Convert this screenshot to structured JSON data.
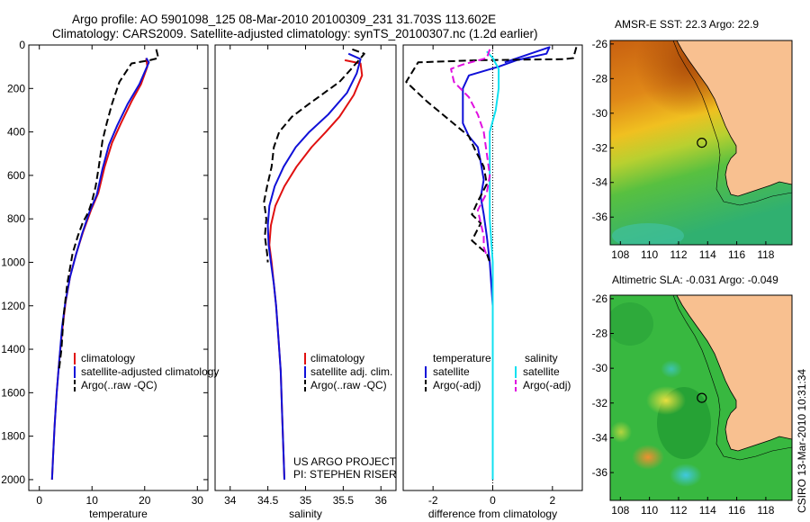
{
  "header": {
    "line1": "Argo profile: AO 5901098_125 08-Mar-2010 20100309_231 31.703S 113.602E",
    "line2": "Climatology: CARS2009. Satellite-adjusted climatology: synTS_20100307.nc (1.2d earlier)"
  },
  "side_label": "CSIRO 13-Mar-2010 10:31:34",
  "credit": {
    "line1": "US ARGO PROJECT",
    "line2": "PI: STEPHEN RISER"
  },
  "colors": {
    "climatology": "#e01010",
    "satellite": "#1010d8",
    "argo": "#000000",
    "sal_satellite": "#10e0f0",
    "sal_argo": "#e010e0",
    "land": "#f8c090",
    "marker": "#000000"
  },
  "chart_data": [
    {
      "id": "temperature",
      "type": "line",
      "xlabel": "temperature",
      "ylabel": "",
      "xlim": [
        -2,
        32
      ],
      "ylim": [
        0,
        2050
      ],
      "y_inverted": true,
      "xticks": [
        0,
        10,
        20,
        30
      ],
      "yticks": [
        0,
        200,
        400,
        600,
        800,
        1000,
        1200,
        1400,
        1600,
        1800,
        2000
      ],
      "legend": [
        "climatology",
        "satellite-adjusted climatology",
        "Argo(..raw -QC)"
      ],
      "series": [
        {
          "name": "climatology",
          "color": "climatology",
          "dash": "",
          "points": [
            [
              20.3,
              60
            ],
            [
              20.5,
              100
            ],
            [
              19.3,
              180
            ],
            [
              17.5,
              260
            ],
            [
              15.5,
              360
            ],
            [
              13.8,
              450
            ],
            [
              12.4,
              560
            ],
            [
              11.2,
              680
            ],
            [
              9.8,
              760
            ],
            [
              8.3,
              860
            ],
            [
              7.0,
              960
            ],
            [
              5.9,
              1060
            ],
            [
              5.0,
              1180
            ],
            [
              4.4,
              1300
            ],
            [
              3.8,
              1450
            ],
            [
              3.3,
              1600
            ],
            [
              2.9,
              1750
            ],
            [
              2.6,
              1900
            ],
            [
              2.4,
              2000
            ]
          ]
        },
        {
          "name": "satellite-adjusted climatology",
          "color": "satellite",
          "dash": "",
          "points": [
            [
              20.3,
              60
            ],
            [
              20.8,
              80
            ],
            [
              19.0,
              180
            ],
            [
              16.8,
              270
            ],
            [
              14.8,
              370
            ],
            [
              13.2,
              460
            ],
            [
              12.0,
              570
            ],
            [
              10.9,
              690
            ],
            [
              9.5,
              770
            ],
            [
              8.1,
              870
            ],
            [
              6.9,
              970
            ],
            [
              5.8,
              1070
            ],
            [
              4.9,
              1190
            ],
            [
              4.3,
              1300
            ],
            [
              3.8,
              1450
            ],
            [
              3.3,
              1600
            ],
            [
              2.9,
              1750
            ],
            [
              2.6,
              1900
            ],
            [
              2.4,
              2000
            ]
          ]
        },
        {
          "name": "Argo(..raw -QC)",
          "color": "argo",
          "dash": "8,4",
          "points": [
            [
              22.2,
              20
            ],
            [
              22.6,
              60
            ],
            [
              21.0,
              70
            ],
            [
              17.5,
              85
            ],
            [
              15.2,
              170
            ],
            [
              13.8,
              270
            ],
            [
              12.8,
              360
            ],
            [
              12.0,
              440
            ],
            [
              11.3,
              560
            ],
            [
              10.7,
              650
            ],
            [
              10.0,
              720
            ],
            [
              9.3,
              770
            ],
            [
              8.2,
              820
            ],
            [
              7.3,
              880
            ],
            [
              6.3,
              960
            ],
            [
              5.3,
              1100
            ],
            [
              4.6,
              1250
            ],
            [
              4.2,
              1400
            ],
            [
              3.7,
              1500
            ]
          ]
        }
      ]
    },
    {
      "id": "salinity",
      "type": "line",
      "xlabel": "salinity",
      "ylabel": "",
      "xlim": [
        33.8,
        36.2
      ],
      "ylim": [
        0,
        2050
      ],
      "y_inverted": true,
      "xticks": [
        34,
        34.5,
        35,
        35.5,
        36
      ],
      "yticks": [],
      "legend": [
        "climatology",
        "satellite adj. clim.",
        "Argo(..raw -QC)"
      ],
      "series": [
        {
          "name": "climatology",
          "color": "climatology",
          "dash": "",
          "points": [
            [
              35.52,
              70
            ],
            [
              35.73,
              85
            ],
            [
              35.75,
              140
            ],
            [
              35.64,
              230
            ],
            [
              35.45,
              330
            ],
            [
              35.27,
              400
            ],
            [
              35.08,
              470
            ],
            [
              34.88,
              560
            ],
            [
              34.72,
              650
            ],
            [
              34.6,
              740
            ],
            [
              34.54,
              830
            ],
            [
              34.52,
              920
            ],
            [
              34.55,
              1000
            ],
            [
              34.58,
              1100
            ],
            [
              34.61,
              1200
            ],
            [
              34.64,
              1350
            ],
            [
              34.67,
              1500
            ],
            [
              34.69,
              1700
            ],
            [
              34.71,
              1900
            ],
            [
              34.72,
              2000
            ]
          ]
        },
        {
          "name": "satellite adj. clim.",
          "color": "satellite",
          "dash": "",
          "points": [
            [
              35.57,
              40
            ],
            [
              35.73,
              65
            ],
            [
              35.68,
              130
            ],
            [
              35.55,
              220
            ],
            [
              35.3,
              320
            ],
            [
              35.05,
              400
            ],
            [
              34.87,
              470
            ],
            [
              34.71,
              560
            ],
            [
              34.59,
              650
            ],
            [
              34.52,
              740
            ],
            [
              34.5,
              830
            ],
            [
              34.51,
              920
            ],
            [
              34.54,
              1000
            ],
            [
              34.58,
              1100
            ],
            [
              34.61,
              1200
            ],
            [
              34.64,
              1350
            ],
            [
              34.67,
              1500
            ],
            [
              34.69,
              1700
            ],
            [
              34.71,
              1900
            ],
            [
              34.72,
              2000
            ]
          ]
        },
        {
          "name": "Argo(..raw -QC)",
          "color": "argo",
          "dash": "8,4",
          "points": [
            [
              35.62,
              20
            ],
            [
              35.78,
              40
            ],
            [
              35.72,
              65
            ],
            [
              35.58,
              120
            ],
            [
              35.45,
              170
            ],
            [
              35.05,
              270
            ],
            [
              34.82,
              330
            ],
            [
              34.65,
              400
            ],
            [
              34.58,
              470
            ],
            [
              34.55,
              560
            ],
            [
              34.49,
              650
            ],
            [
              34.45,
              720
            ],
            [
              34.48,
              800
            ],
            [
              34.46,
              880
            ],
            [
              34.49,
              960
            ],
            [
              34.5,
              1000
            ]
          ]
        }
      ]
    },
    {
      "id": "difference",
      "type": "line",
      "xlabel": "difference from climatology",
      "ylabel": "",
      "xlim": [
        -3,
        3
      ],
      "ylim": [
        0,
        2050
      ],
      "y_inverted": true,
      "xticks": [
        -2,
        0,
        2
      ],
      "yticks": [],
      "legend_headers": [
        "temperature",
        "salinity"
      ],
      "legend": [
        "satellite",
        "Argo(-adj)",
        "satellite",
        "Argo(-adj)"
      ],
      "zero_line": 0,
      "series": [
        {
          "name": "satellite",
          "group": "temperature",
          "color": "satellite",
          "dash": "",
          "points": [
            [
              0.4,
              80
            ],
            [
              1.9,
              10
            ],
            [
              1.8,
              40
            ],
            [
              0.8,
              70
            ],
            [
              0.2,
              100
            ],
            [
              -0.8,
              140
            ],
            [
              -1.0,
              200
            ],
            [
              -1.0,
              280
            ],
            [
              -1.0,
              360
            ],
            [
              -0.8,
              420
            ],
            [
              -0.5,
              470
            ],
            [
              -0.4,
              540
            ],
            [
              -0.3,
              620
            ],
            [
              -0.4,
              700
            ],
            [
              -0.3,
              780
            ],
            [
              -0.2,
              880
            ],
            [
              -0.1,
              1000
            ],
            [
              0.0,
              1200
            ],
            [
              0.0,
              1500
            ],
            [
              0.0,
              2000
            ]
          ]
        },
        {
          "name": "Argo(-adj)",
          "group": "temperature",
          "color": "argo",
          "dash": "8,4",
          "points": [
            [
              2.8,
              10
            ],
            [
              2.7,
              60
            ],
            [
              2.4,
              65
            ],
            [
              -0.5,
              70
            ],
            [
              -2.5,
              80
            ],
            [
              -2.9,
              170
            ],
            [
              -2.2,
              260
            ],
            [
              -1.5,
              340
            ],
            [
              -0.8,
              420
            ],
            [
              -0.6,
              480
            ],
            [
              -0.3,
              560
            ],
            [
              -0.2,
              640
            ],
            [
              -0.5,
              720
            ],
            [
              -0.7,
              780
            ],
            [
              -0.4,
              820
            ],
            [
              -0.7,
              900
            ],
            [
              -0.2,
              960
            ],
            [
              -0.1,
              1000
            ]
          ]
        },
        {
          "name": "satellite",
          "group": "salinity",
          "color": "sal_satellite",
          "dash": "",
          "points": [
            [
              -0.2,
              30
            ],
            [
              0.0,
              60
            ],
            [
              0.2,
              110
            ],
            [
              0.2,
              200
            ],
            [
              0.1,
              300
            ],
            [
              -0.1,
              400
            ],
            [
              -0.1,
              500
            ],
            [
              -0.1,
              600
            ],
            [
              -0.1,
              700
            ],
            [
              -0.1,
              800
            ],
            [
              -0.05,
              900
            ],
            [
              0.0,
              1000
            ],
            [
              0.0,
              1300
            ],
            [
              0.0,
              1600
            ],
            [
              0.0,
              2000
            ]
          ]
        },
        {
          "name": "Argo(-adj)",
          "group": "salinity",
          "color": "sal_argo",
          "dash": "8,4",
          "points": [
            [
              -0.1,
              20
            ],
            [
              -0.2,
              60
            ],
            [
              -1.0,
              90
            ],
            [
              -1.4,
              110
            ],
            [
              -1.3,
              170
            ],
            [
              -0.8,
              240
            ],
            [
              -0.5,
              320
            ],
            [
              -0.3,
              400
            ],
            [
              -0.2,
              500
            ],
            [
              -0.1,
              600
            ],
            [
              -0.2,
              680
            ],
            [
              -0.5,
              760
            ],
            [
              -0.4,
              820
            ],
            [
              -0.3,
              880
            ],
            [
              -0.3,
              930
            ],
            [
              -0.2,
              970
            ]
          ]
        }
      ]
    },
    {
      "id": "sst_map",
      "type": "heatmap",
      "title": "AMSR-E SST: 22.3 Argo: 22.9",
      "xlim": [
        107.3,
        119.8
      ],
      "ylim": [
        -37.6,
        -25.8
      ],
      "xticks": [
        108,
        110,
        112,
        114,
        116,
        118
      ],
      "yticks": [
        -26,
        -28,
        -30,
        -32,
        -34,
        -36
      ],
      "float_marker": [
        113.602,
        -31.703
      ]
    },
    {
      "id": "sla_map",
      "type": "heatmap",
      "title": "Altimetric SLA: -0.031 Argo: -0.049",
      "xlim": [
        107.3,
        119.8
      ],
      "ylim": [
        -37.6,
        -25.8
      ],
      "xticks": [
        108,
        110,
        112,
        114,
        116,
        118
      ],
      "yticks": [
        -26,
        -28,
        -30,
        -32,
        -34,
        -36
      ],
      "float_marker": [
        113.602,
        -31.703
      ]
    }
  ]
}
